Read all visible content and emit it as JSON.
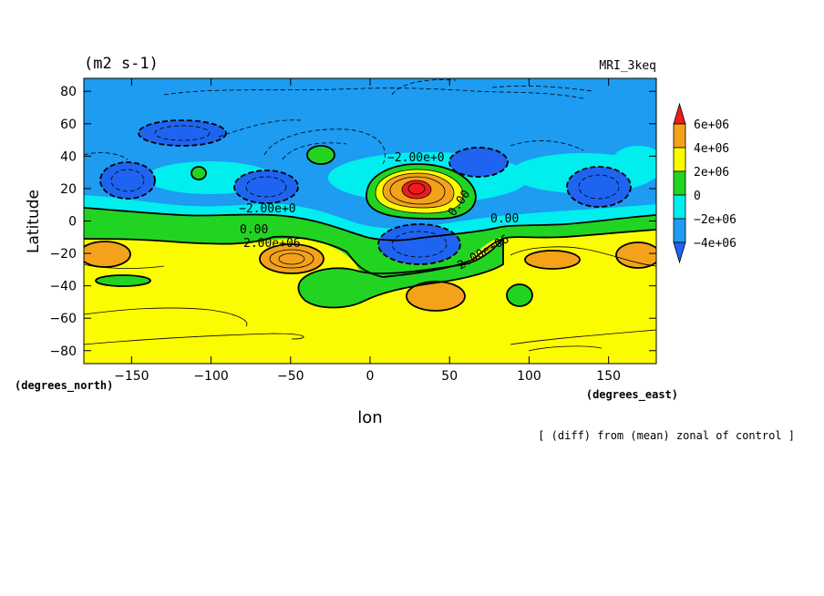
{
  "chart_data": {
    "type": "contour",
    "title_left": "(m2 s-1)",
    "title_right": "MRI_3keq",
    "ylabel": "Latitude",
    "xlabel": "lon",
    "x_unit": "(degrees_east)",
    "y_unit": "(degrees_north)",
    "footnote": "[ (diff) from (mean) zonal of control ]",
    "xlim": [
      -180,
      180
    ],
    "ylim": [
      -88,
      88
    ],
    "x_ticks": [
      -150,
      -100,
      -50,
      0,
      50,
      100,
      150
    ],
    "y_ticks": [
      80,
      60,
      40,
      20,
      0,
      -20,
      -40,
      -60,
      -80
    ],
    "x_tick_labels": [
      "−150",
      "−100",
      "−50",
      "0",
      "50",
      "100",
      "150"
    ],
    "y_tick_labels": [
      "80",
      "60",
      "40",
      "20",
      "0",
      "−20",
      "−40",
      "−60",
      "−80"
    ],
    "colorbar": {
      "labels": [
        "6e+06",
        "4e+06",
        "2e+06",
        "0",
        "−2e+06",
        "−4e+06"
      ],
      "colors": [
        "#ee1c1c",
        "#f3a21a",
        "#fcfc00",
        "#22d422",
        "#00eeee",
        "#1d9cf2",
        "#1e64f0"
      ]
    },
    "contour_labels": [
      "−2.00e+0",
      "0.00",
      "2.00e+06",
      "−2.00e+0",
      "0.00",
      "2.00e+06",
      "0.00"
    ],
    "colors": {
      "level_minus4": "#1e64f0",
      "level_minus2": "#1d9cf2",
      "level_0": "#00eeee",
      "level_2": "#22d422",
      "level_4": "#fcfc00",
      "level_6": "#f3a21a",
      "level_8": "#ee1c1c"
    }
  }
}
